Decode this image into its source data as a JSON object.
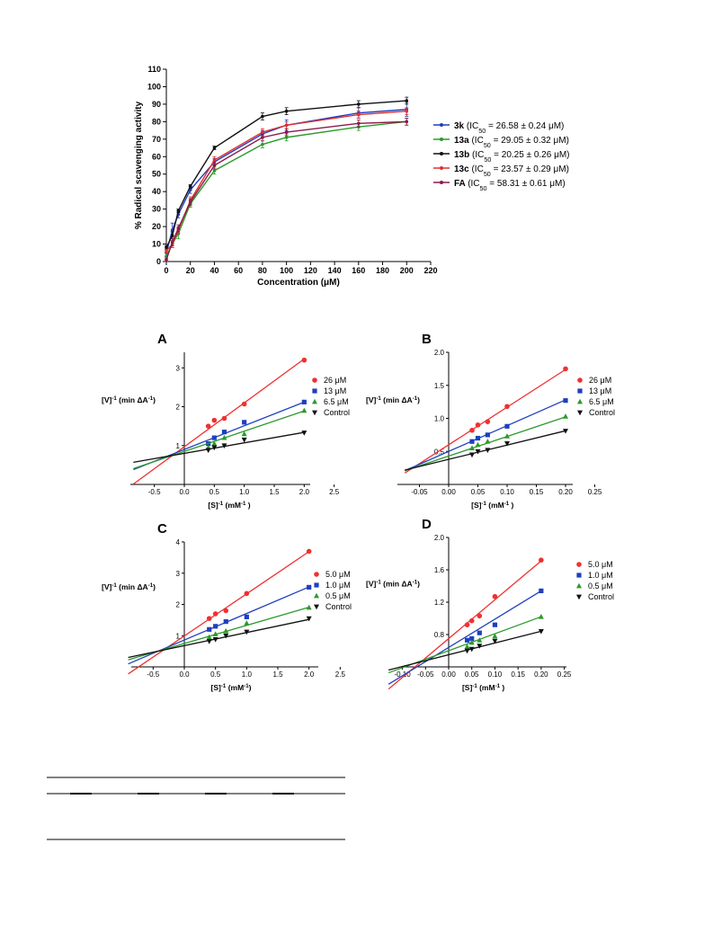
{
  "chart_data": [
    {
      "id": "radical",
      "type": "line",
      "xlabel": "Concentration (μM)",
      "ylabel": "% Radical scavenging activity",
      "xlim": [
        0,
        220
      ],
      "ylim": [
        0,
        110
      ],
      "xticks": [
        0,
        20,
        40,
        60,
        80,
        100,
        120,
        140,
        160,
        180,
        200,
        220
      ],
      "yticks": [
        0,
        10,
        20,
        30,
        40,
        50,
        60,
        70,
        80,
        90,
        100,
        110
      ],
      "x": [
        0,
        5,
        10,
        20,
        40,
        80,
        100,
        160,
        200
      ],
      "legend_position": "right",
      "series": [
        {
          "name": "3k",
          "ic50": "(IC50 = 26.58 ± 0.24 μM)",
          "color": "#1f3fbf",
          "values": [
            5,
            18,
            27,
            41,
            57,
            73,
            78,
            85,
            87
          ],
          "err": [
            2,
            4,
            2,
            2,
            2,
            2,
            3,
            3,
            4
          ]
        },
        {
          "name": "13a",
          "ic50": "(IC50 = 29.05 ± 0.32 μM)",
          "color": "#2a9a2a",
          "values": [
            3,
            10,
            16,
            33,
            52,
            67,
            71,
            77,
            80
          ],
          "err": [
            2,
            2,
            3,
            2,
            2,
            2,
            2,
            2,
            2
          ]
        },
        {
          "name": "13b",
          "ic50": "(IC50 = 20.25 ± 0.26 μM)",
          "color": "#111111",
          "values": [
            8,
            15,
            29,
            43,
            65,
            83,
            86,
            90,
            92
          ],
          "err": [
            1,
            2,
            1,
            1,
            1,
            2,
            2,
            2,
            2
          ]
        },
        {
          "name": "13c",
          "ic50": "(IC50 = 23.57 ± 0.29 μM)",
          "color": "#e03030",
          "values": [
            6,
            10,
            18,
            35,
            58,
            74,
            78,
            84,
            86
          ],
          "err": [
            1,
            2,
            2,
            2,
            2,
            2,
            2,
            2,
            2
          ]
        },
        {
          "name": "FA",
          "ic50": "(IC50 = 58.31 ± 0.61 μM)",
          "color": "#8b1a4a",
          "values": [
            1,
            11,
            19,
            34,
            55,
            71,
            74,
            79,
            80
          ],
          "err": [
            1,
            2,
            2,
            2,
            2,
            2,
            2,
            2,
            2
          ]
        }
      ]
    },
    {
      "id": "A",
      "panel": "A",
      "type": "scatter",
      "xlabel": "[S]⁻¹ (mM⁻¹ )",
      "ylabel": "[V]⁻¹ (min ΔA⁻¹)",
      "xlim": [
        -0.5,
        2.5
      ],
      "ylim": [
        0,
        3.4
      ],
      "xticks": [
        "-0.5",
        "0.0",
        "0.5",
        "1.0",
        "1.5",
        "2.0",
        "2.5"
      ],
      "yticks": [
        "1",
        "2",
        "3"
      ],
      "x": [
        0.4,
        0.5,
        0.667,
        1.0,
        2.0
      ],
      "line_x_start": -0.85,
      "series": [
        {
          "name": "26 μM",
          "color": "#f03030",
          "marker": "circle",
          "values": [
            1.5,
            1.65,
            1.7,
            2.07,
            3.2
          ],
          "intercept": 0.97,
          "slope": 1.13
        },
        {
          "name": "13 μM",
          "color": "#1f3fbf",
          "marker": "square",
          "values": [
            1.05,
            1.2,
            1.35,
            1.6,
            2.12
          ],
          "intercept": 0.9,
          "slope": 0.61
        },
        {
          "name": "6.5 μM",
          "color": "#2a9a2a",
          "marker": "triangle",
          "values": [
            0.95,
            1.05,
            1.2,
            1.3,
            1.9
          ],
          "intercept": 0.85,
          "slope": 0.52
        },
        {
          "name": "Control",
          "color": "#111111",
          "marker": "triangle-down",
          "values": [
            0.88,
            0.95,
            1.0,
            1.15,
            1.33
          ],
          "intercept": 0.8,
          "slope": 0.27
        }
      ]
    },
    {
      "id": "B",
      "panel": "B",
      "type": "scatter",
      "xlabel": "[S]⁻¹ (mM⁻¹ )",
      "ylabel": "[V]⁻¹ (min ΔA⁻¹)",
      "xlim": [
        -0.05,
        0.25
      ],
      "ylim": [
        0,
        2.0
      ],
      "xticks": [
        "-0.05",
        "0.00",
        "0.05",
        "0.10",
        "0.15",
        "0.20",
        "0.25"
      ],
      "yticks": [
        "0.5",
        "1.0",
        "1.5",
        "2.0"
      ],
      "x": [
        0.04,
        0.05,
        0.0667,
        0.1,
        0.2
      ],
      "line_x_start": -0.075,
      "series": [
        {
          "name": "26 μM",
          "color": "#f03030",
          "marker": "circle",
          "values": [
            0.82,
            0.9,
            0.95,
            1.18,
            1.75
          ],
          "intercept": 0.6,
          "slope": 5.7
        },
        {
          "name": "13 μM",
          "color": "#1f3fbf",
          "marker": "square",
          "values": [
            0.65,
            0.7,
            0.75,
            0.88,
            1.27
          ],
          "intercept": 0.5,
          "slope": 3.9
        },
        {
          "name": "6.5 μM",
          "color": "#2a9a2a",
          "marker": "triangle",
          "values": [
            0.55,
            0.6,
            0.65,
            0.73,
            1.03
          ],
          "intercept": 0.43,
          "slope": 2.96
        },
        {
          "name": "Control",
          "color": "#111111",
          "marker": "triangle-down",
          "values": [
            0.45,
            0.5,
            0.52,
            0.62,
            0.81
          ],
          "intercept": 0.38,
          "slope": 2.16
        }
      ]
    },
    {
      "id": "C",
      "panel": "C",
      "type": "scatter",
      "xlabel": "[S]⁻¹ (mM⁻¹)",
      "ylabel": "[V]⁻¹ (min ΔA⁻¹)",
      "xlim": [
        -0.5,
        2.5
      ],
      "ylim": [
        0,
        4.0
      ],
      "xticks": [
        "-0.5",
        "0.0",
        "0.5",
        "1.0",
        "1.5",
        "2.0",
        "2.5"
      ],
      "yticks": [
        "1",
        "2",
        "3",
        "4"
      ],
      "x": [
        0.4,
        0.5,
        0.667,
        1.0,
        2.0
      ],
      "line_x_start": -0.9,
      "series": [
        {
          "name": "5.0 μM",
          "color": "#f03030",
          "marker": "circle",
          "values": [
            1.55,
            1.7,
            1.8,
            2.35,
            3.7
          ],
          "intercept": 0.99,
          "slope": 1.35
        },
        {
          "name": "1.0 μM",
          "color": "#1f3fbf",
          "marker": "square",
          "values": [
            1.2,
            1.3,
            1.45,
            1.6,
            2.55
          ],
          "intercept": 0.86,
          "slope": 0.85
        },
        {
          "name": "0.5 μM",
          "color": "#2a9a2a",
          "marker": "triangle",
          "values": [
            0.95,
            1.05,
            1.15,
            1.4,
            1.9
          ],
          "intercept": 0.75,
          "slope": 0.58
        },
        {
          "name": "Control",
          "color": "#111111",
          "marker": "triangle-down",
          "values": [
            0.82,
            0.88,
            1.0,
            1.12,
            1.55
          ],
          "intercept": 0.68,
          "slope": 0.42
        }
      ]
    },
    {
      "id": "D",
      "panel": "D",
      "type": "scatter",
      "xlabel": "[S]⁻¹ (mM⁻¹ )",
      "ylabel": "[V]⁻¹ (min ΔA⁻¹)",
      "xlim": [
        -0.1,
        0.25
      ],
      "ylim": [
        0.4,
        2.0
      ],
      "xticks": [
        "-0.10",
        "-0.05",
        "0.00",
        "0.05",
        "0.10",
        "0.15",
        "0.20",
        "0.25"
      ],
      "yticks": [
        "0.8",
        "1.2",
        "1.6",
        "2.0"
      ],
      "x": [
        0.04,
        0.05,
        0.0667,
        0.1,
        0.2
      ],
      "line_x_start": -0.13,
      "series": [
        {
          "name": "5.0 μM",
          "color": "#f03030",
          "marker": "circle",
          "values": [
            0.92,
            0.97,
            1.03,
            1.27,
            1.72
          ],
          "intercept": 0.75,
          "slope": 4.8
        },
        {
          "name": "1.0 μM",
          "color": "#1f3fbf",
          "marker": "square",
          "values": [
            0.73,
            0.75,
            0.82,
            0.92,
            1.34
          ],
          "intercept": 0.64,
          "slope": 3.5
        },
        {
          "name": "0.5 μM",
          "color": "#2a9a2a",
          "marker": "triangle",
          "values": [
            0.65,
            0.7,
            0.73,
            0.78,
            1.02
          ],
          "intercept": 0.6,
          "slope": 2.1
        },
        {
          "name": "Control",
          "color": "#111111",
          "marker": "triangle-down",
          "values": [
            0.6,
            0.62,
            0.66,
            0.72,
            0.84
          ],
          "intercept": 0.55,
          "slope": 1.45
        }
      ]
    }
  ]
}
